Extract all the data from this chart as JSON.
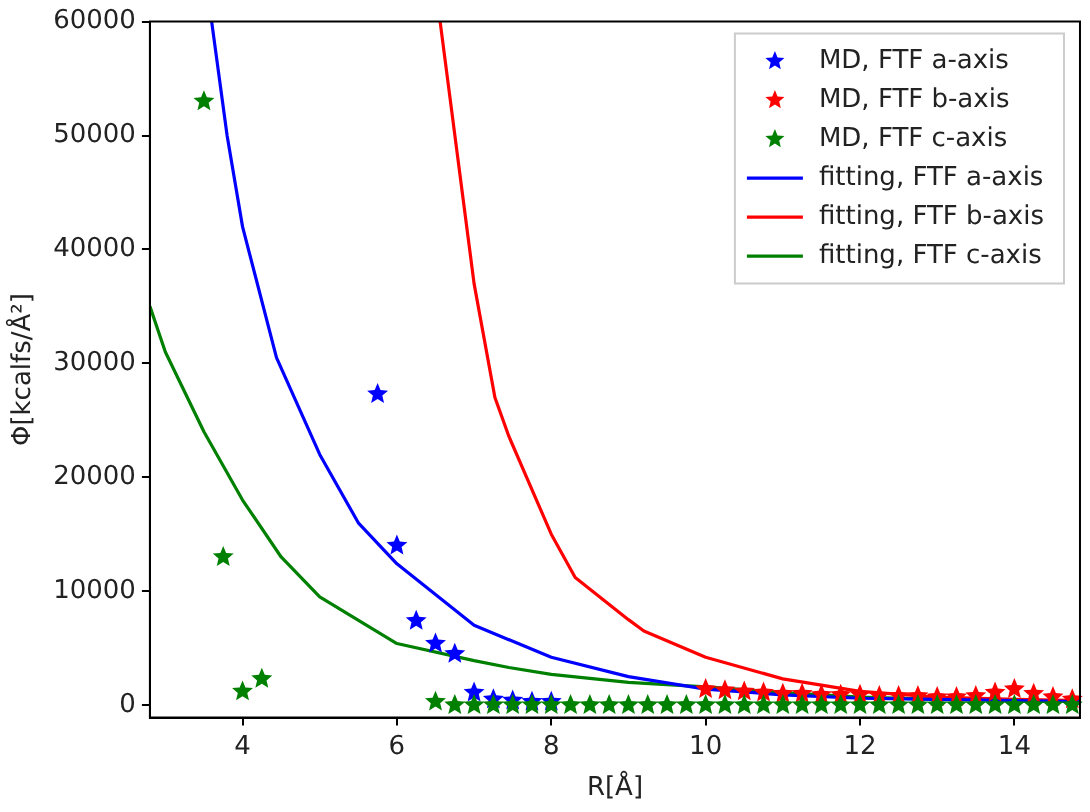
{
  "chart_data": {
    "type": "scatter",
    "xlabel": "R[Å]",
    "ylabel": "Φ[kcalfs/Å²]",
    "xlim": [
      2.8,
      14.85
    ],
    "ylim": [
      -1100,
      60000
    ],
    "xticks": [
      4,
      6,
      8,
      10,
      12,
      14
    ],
    "yticks": [
      0,
      10000,
      20000,
      30000,
      40000,
      50000,
      60000
    ],
    "grid": false,
    "legend": "top right",
    "series": [
      {
        "name": "MD, FTF a-axis",
        "marker": "star",
        "color": "#0000ff",
        "x": [
          5.75,
          6,
          6.25,
          6.5,
          6.75,
          7,
          7.25,
          7.5,
          7.75,
          8
        ],
        "values": [
          27300,
          14000,
          7400,
          5400,
          4500,
          1100,
          500,
          400,
          300,
          300
        ]
      },
      {
        "name": "MD, FTF b-axis",
        "marker": "star",
        "color": "#ff0000",
        "x": [
          10,
          10.25,
          10.5,
          10.75,
          11,
          11.25,
          11.5,
          11.75,
          12,
          12.25,
          12.5,
          12.75,
          13,
          13.25,
          13.5,
          13.75,
          14,
          14.25,
          14.5,
          14.75
        ],
        "values": [
          1400,
          1300,
          1200,
          1100,
          1000,
          1000,
          900,
          900,
          900,
          800,
          800,
          800,
          700,
          700,
          800,
          1100,
          1400,
          1000,
          700,
          500
        ]
      },
      {
        "name": "MD, FTF c-axis",
        "marker": "star",
        "color": "#008000",
        "x": [
          3.5,
          3.75,
          4,
          4.25,
          6.5,
          6.75,
          7,
          7.25,
          7.5,
          7.75,
          8,
          8.25,
          8.5,
          8.75,
          9,
          9.25,
          9.5,
          9.75,
          10,
          10.25,
          10.5,
          10.75,
          11,
          11.25,
          11.5,
          11.75,
          12,
          12.25,
          12.5,
          12.75,
          13,
          13.25,
          13.5,
          13.75,
          14,
          14.25,
          14.5,
          14.75
        ],
        "values": [
          53000,
          13000,
          1200,
          2300,
          300,
          0,
          0,
          0,
          0,
          0,
          0,
          0,
          0,
          0,
          0,
          0,
          0,
          0,
          0,
          0,
          0,
          0,
          0,
          0,
          0,
          0,
          0,
          0,
          0,
          0,
          0,
          0,
          0,
          0,
          0,
          0,
          0,
          0
        ]
      },
      {
        "name": "fitting, FTF a-axis",
        "type": "line",
        "color": "#0000ff",
        "x": [
          3.6,
          3.8,
          4,
          4.44,
          5,
          5.5,
          6,
          7,
          8,
          9,
          10,
          11,
          12,
          13,
          14,
          14.85
        ],
        "values": [
          60000,
          50000,
          42000,
          30500,
          22000,
          16000,
          12400,
          7000,
          4200,
          2500,
          1400,
          900,
          600,
          500,
          400,
          300
        ]
      },
      {
        "name": "fitting, FTF b-axis",
        "type": "line",
        "color": "#ff0000",
        "x": [
          6.56,
          7,
          7.27,
          7.45,
          8,
          8.31,
          9,
          9.2,
          10,
          11,
          12,
          13,
          14,
          14.85
        ],
        "values": [
          60000,
          37000,
          27000,
          23600,
          15000,
          11200,
          7500,
          6500,
          4200,
          2300,
          1200,
          700,
          500,
          400
        ]
      },
      {
        "name": "fitting, FTF c-axis",
        "type": "line",
        "color": "#008000",
        "x": [
          2.8,
          3,
          3.5,
          4,
          4.5,
          5,
          6,
          7,
          7.45,
          8,
          9,
          10,
          11,
          12,
          13,
          14,
          14.85
        ],
        "values": [
          35000,
          31000,
          24000,
          18000,
          13000,
          9500,
          5400,
          3900,
          3300,
          2700,
          2000,
          1600,
          1100,
          700,
          500,
          400,
          300
        ]
      }
    ]
  }
}
